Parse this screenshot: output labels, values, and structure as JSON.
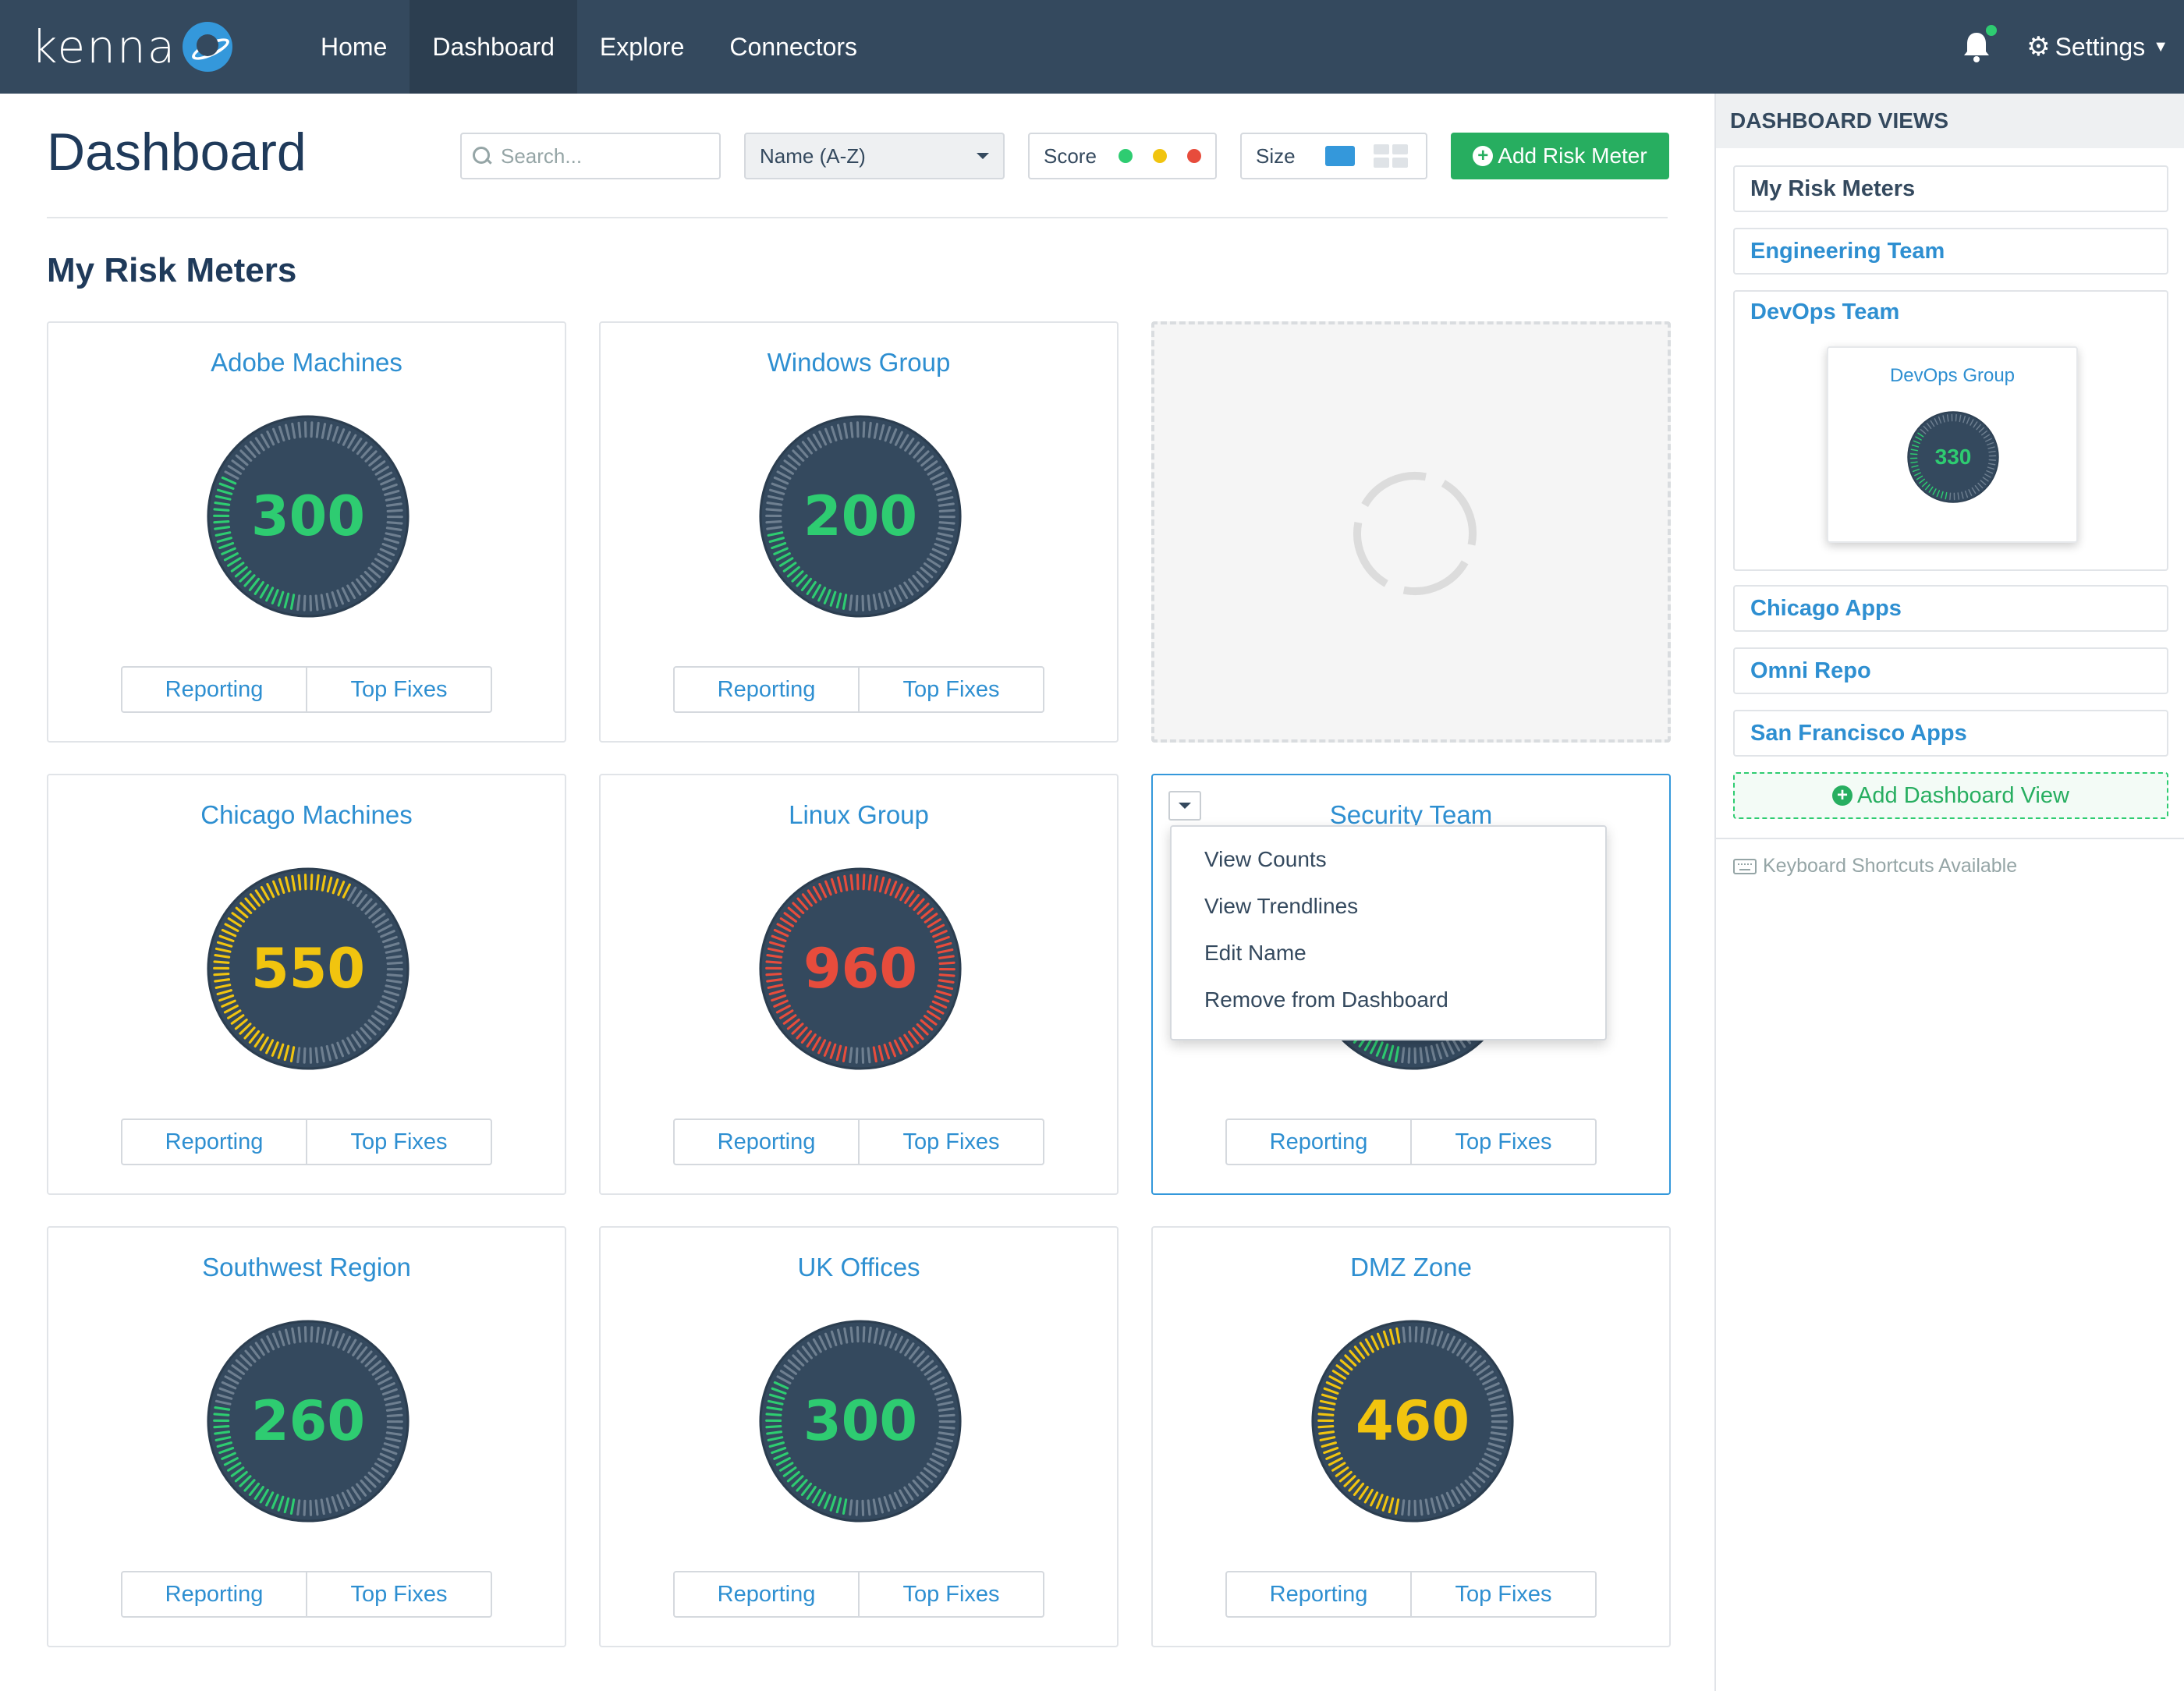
{
  "app": {
    "logo_text": "kenna"
  },
  "nav": {
    "items": [
      {
        "label": "Home",
        "active": false
      },
      {
        "label": "Dashboard",
        "active": true
      },
      {
        "label": "Explore",
        "active": false
      },
      {
        "label": "Connectors",
        "active": false
      }
    ],
    "settings_label": "Settings"
  },
  "page": {
    "title": "Dashboard",
    "section_title": "My Risk Meters"
  },
  "toolbar": {
    "search_placeholder": "Search...",
    "sort_value": "Name (A-Z)",
    "score_label": "Score",
    "score_colors": [
      "#2ecc71",
      "#f1c40f",
      "#e74c3c"
    ],
    "size_label": "Size",
    "add_button": "Add Risk Meter"
  },
  "cards": [
    {
      "title": "Adobe Machines",
      "score": "300",
      "fraction": 0.3,
      "color": "#2ecc71",
      "reporting": "Reporting",
      "top_fixes": "Top Fixes"
    },
    {
      "title": "Windows Group",
      "score": "200",
      "fraction": 0.2,
      "color": "#2ecc71",
      "reporting": "Reporting",
      "top_fixes": "Top Fixes"
    },
    {
      "title": "",
      "loading": true
    },
    {
      "title": "Chicago Machines",
      "score": "550",
      "fraction": 0.55,
      "color": "#f1c40f",
      "reporting": "Reporting",
      "top_fixes": "Top Fixes"
    },
    {
      "title": "Linux Group",
      "score": "960",
      "fraction": 0.96,
      "color": "#e74c3c",
      "reporting": "Reporting",
      "top_fixes": "Top Fixes"
    },
    {
      "title": "Security Team",
      "score": "",
      "fraction": 0.2,
      "color": "#2ecc71",
      "reporting": "Reporting",
      "top_fixes": "Top Fixes",
      "menu_open": true
    },
    {
      "title": "Southwest Region",
      "score": "260",
      "fraction": 0.26,
      "color": "#2ecc71",
      "reporting": "Reporting",
      "top_fixes": "Top Fixes"
    },
    {
      "title": "UK Offices",
      "score": "300",
      "fraction": 0.3,
      "color": "#2ecc71",
      "reporting": "Reporting",
      "top_fixes": "Top Fixes"
    },
    {
      "title": "DMZ Zone",
      "score": "460",
      "fraction": 0.46,
      "color": "#f1c40f",
      "reporting": "Reporting",
      "top_fixes": "Top Fixes"
    }
  ],
  "card_menu": {
    "items": [
      "View Counts",
      "View Trendlines",
      "Edit Name",
      "Remove from Dashboard"
    ]
  },
  "sidebar": {
    "header": "DASHBOARD VIEWS",
    "views": [
      {
        "label": "My Risk Meters"
      },
      {
        "label": "Engineering Team"
      },
      {
        "label": "DevOps Team"
      },
      {
        "label": "Chicago Apps"
      },
      {
        "label": "Omni Repo"
      },
      {
        "label": "San Francisco Apps"
      }
    ],
    "devops_preview": {
      "title": "DevOps Group",
      "score": "330",
      "fraction": 0.33,
      "color": "#2ecc71"
    },
    "add_view": "Add Dashboard View",
    "shortcuts": "Keyboard Shortcuts Available"
  }
}
